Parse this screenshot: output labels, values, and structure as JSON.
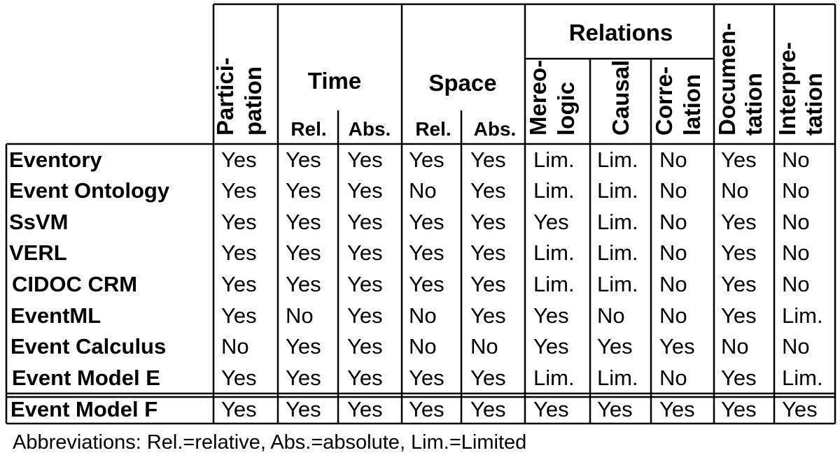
{
  "header": {
    "participation": [
      "Partici-",
      "pation"
    ],
    "time": "Time",
    "space": "Space",
    "relations": "Relations",
    "mereologic": [
      "Mereo-",
      "logic"
    ],
    "causal": [
      "Causal"
    ],
    "correlation": [
      "Corre-",
      "lation"
    ],
    "documentation": [
      "Documen-",
      "tation"
    ],
    "interpretation": [
      "Interpre-",
      "tation"
    ],
    "rel": "Rel.",
    "abs": "Abs."
  },
  "rows": [
    {
      "label": "Eventory",
      "values": [
        "Yes",
        "Yes",
        "Yes",
        "Yes",
        "Yes",
        "Lim.",
        "Lim.",
        "No",
        "Yes",
        "No"
      ]
    },
    {
      "label": "Event Ontology",
      "values": [
        "Yes",
        "Yes",
        "Yes",
        "No",
        "Yes",
        "Lim.",
        "Lim.",
        "No",
        "No",
        "No"
      ]
    },
    {
      "label": "SsVM",
      "values": [
        "Yes",
        "Yes",
        "Yes",
        "Yes",
        "Yes",
        "Yes",
        "Lim.",
        "No",
        "Yes",
        "No"
      ]
    },
    {
      "label": "VERL",
      "values": [
        "Yes",
        "Yes",
        "Yes",
        "Yes",
        "Yes",
        "Lim.",
        "Lim.",
        "No",
        "Yes",
        "No"
      ]
    },
    {
      "label": "CIDOC CRM",
      "values": [
        "Yes",
        "Yes",
        "Yes",
        "Yes",
        "Yes",
        "Lim.",
        "Lim.",
        "No",
        "Yes",
        "No"
      ]
    },
    {
      "label": "EventML",
      "values": [
        "Yes",
        "No",
        "Yes",
        "No",
        "Yes",
        "Yes",
        "No",
        "No",
        "Yes",
        "Lim."
      ]
    },
    {
      "label": "Event Calculus",
      "values": [
        "No",
        "Yes",
        "Yes",
        "No",
        "No",
        "Yes",
        "Yes",
        "Yes",
        "No",
        "No"
      ]
    },
    {
      "label": "Event Model E",
      "values": [
        "Yes",
        "Yes",
        "Yes",
        "Yes",
        "Yes",
        "Lim.",
        "Lim.",
        "No",
        "Yes",
        "Lim."
      ]
    },
    {
      "label": "Event Model F",
      "values": [
        "Yes",
        "Yes",
        "Yes",
        "Yes",
        "Yes",
        "Yes",
        "Yes",
        "Yes",
        "Yes",
        "Yes"
      ]
    }
  ],
  "footnote": "Abbreviations: Rel.=relative, Abs.=absolute, Lim.=Limited"
}
